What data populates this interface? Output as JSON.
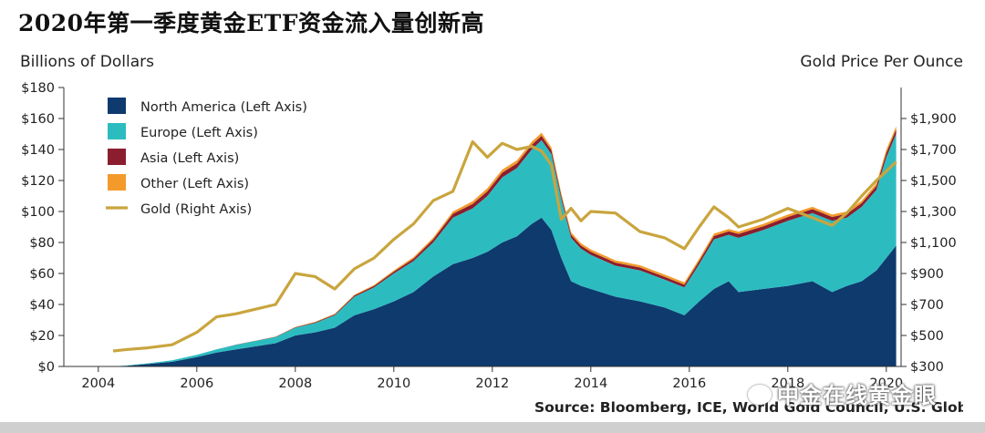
{
  "title": "2020年第一季度黄金ETF资金流入量创新高",
  "source": "Source: Bloomberg, ICE, World Gold Council, U.S. Global Investors",
  "watermark": "中金在线黄金眼",
  "chart_data": {
    "type": "area",
    "left_axis_label": "Billions of Dollars",
    "right_axis_label": "Gold Price Per Ounce",
    "left_ylim": [
      0,
      180
    ],
    "left_ticks": [
      "$0",
      "$20",
      "$40",
      "$60",
      "$80",
      "$100",
      "$120",
      "$140",
      "$160",
      "$180"
    ],
    "right_ylim": [
      300,
      2100
    ],
    "right_ticks": [
      "$300",
      "$500",
      "$700",
      "$900",
      "$1,100",
      "$1,300",
      "$1,500",
      "$1,700",
      "$1,900"
    ],
    "right_tick_values": [
      300,
      500,
      700,
      900,
      1100,
      1300,
      1500,
      1700,
      1900
    ],
    "xlim": [
      2003.3,
      2020.3
    ],
    "x_ticks": [
      "2004",
      "2006",
      "2008",
      "2010",
      "2012",
      "2014",
      "2016",
      "2018",
      "2020"
    ],
    "grid": false,
    "legend_position": "top-left",
    "colors": {
      "north_america": "#0e3a6e",
      "europe": "#2cbcc0",
      "asia": "#8b1e2e",
      "other": "#f39a2b",
      "gold": "#c9a53e"
    },
    "x": [
      2004.3,
      2004.6,
      2005.0,
      2005.5,
      2006.0,
      2006.4,
      2006.8,
      2007.2,
      2007.6,
      2008.0,
      2008.4,
      2008.8,
      2009.2,
      2009.6,
      2010.0,
      2010.4,
      2010.8,
      2011.2,
      2011.6,
      2011.9,
      2012.2,
      2012.5,
      2012.8,
      2013.0,
      2013.2,
      2013.4,
      2013.6,
      2013.8,
      2014.0,
      2014.5,
      2015.0,
      2015.5,
      2015.9,
      2016.2,
      2016.5,
      2016.8,
      2017.0,
      2017.5,
      2018.0,
      2018.5,
      2018.9,
      2019.2,
      2019.5,
      2019.8,
      2020.0,
      2020.2
    ],
    "series": [
      {
        "name": "North America (Left Axis)",
        "axis": "left",
        "values": [
          0,
          0.5,
          1.5,
          3,
          6,
          9,
          11,
          13,
          15,
          20,
          22,
          25,
          33,
          37,
          42,
          48,
          58,
          66,
          70,
          74,
          80,
          84,
          92,
          96,
          88,
          70,
          55,
          52,
          50,
          45,
          42,
          38,
          33,
          42,
          50,
          55,
          48,
          50,
          52,
          55,
          48,
          52,
          55,
          62,
          70,
          78
        ]
      },
      {
        "name": "Europe (Left Axis)",
        "axis": "left",
        "values": [
          0,
          0.2,
          0.5,
          1,
          1.5,
          2,
          3,
          3.5,
          4,
          5,
          6,
          8,
          12,
          14,
          18,
          20,
          22,
          30,
          32,
          36,
          42,
          44,
          48,
          50,
          49,
          38,
          28,
          24,
          22,
          20,
          20,
          18,
          18,
          24,
          32,
          30,
          35,
          38,
          42,
          44,
          46,
          44,
          48,
          52,
          65,
          72
        ]
      },
      {
        "name": "Asia (Left Axis)",
        "axis": "left",
        "values": [
          0,
          0,
          0,
          0,
          0,
          0,
          0.1,
          0.1,
          0.2,
          0.3,
          0.5,
          0.6,
          0.8,
          1,
          1.2,
          1.5,
          2,
          2.5,
          2.8,
          3,
          3,
          3,
          3,
          2.8,
          2.5,
          2.2,
          2,
          2,
          2,
          2,
          1.8,
          1.8,
          1.8,
          2,
          2.2,
          2.2,
          2.5,
          2.5,
          2.5,
          2.5,
          2.5,
          2.5,
          2.5,
          2.5,
          2.8,
          3
        ]
      },
      {
        "name": "Other (Left Axis)",
        "axis": "left",
        "values": [
          0,
          0,
          0,
          0,
          0,
          0,
          0,
          0.1,
          0.1,
          0.2,
          0.3,
          0.4,
          0.5,
          0.6,
          0.8,
          1,
          1.2,
          1.5,
          1.8,
          2,
          2,
          2,
          2,
          2,
          1.8,
          1.6,
          1.5,
          1.5,
          1.5,
          1.5,
          1.5,
          1.5,
          1.5,
          1.5,
          1.5,
          1.5,
          1.5,
          1.5,
          1.5,
          1.5,
          1.5,
          1.5,
          1.5,
          1.8,
          2,
          2
        ]
      },
      {
        "name": "Gold (Right Axis)",
        "axis": "right",
        "values": [
          400,
          410,
          420,
          440,
          520,
          620,
          640,
          670,
          700,
          900,
          880,
          800,
          930,
          1000,
          1120,
          1220,
          1370,
          1430,
          1750,
          1650,
          1740,
          1700,
          1720,
          1690,
          1600,
          1250,
          1320,
          1240,
          1300,
          1290,
          1170,
          1130,
          1060,
          1200,
          1330,
          1260,
          1200,
          1250,
          1320,
          1260,
          1210,
          1290,
          1400,
          1500,
          1560,
          1620
        ]
      }
    ]
  }
}
